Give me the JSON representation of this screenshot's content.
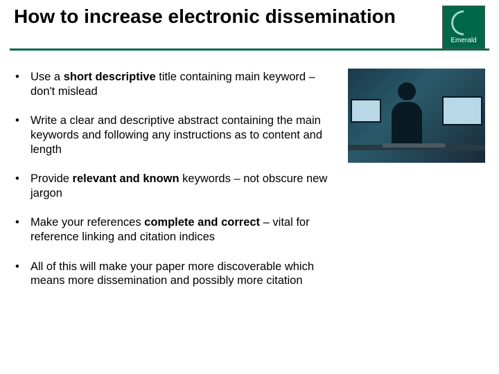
{
  "title": "How to increase electronic dissemination",
  "logo": {
    "name": "Emerald",
    "bg": "#006848"
  },
  "divider_color": "#006848",
  "bullets": [
    {
      "parts": [
        {
          "t": "Use a ",
          "b": false
        },
        {
          "t": "short descriptive ",
          "b": true
        },
        {
          "t": "title containing main keyword – don't mislead",
          "b": false
        }
      ]
    },
    {
      "parts": [
        {
          "t": "Write a clear and descriptive abstract containing the main keywords and following any instructions as to content and length",
          "b": false
        }
      ]
    },
    {
      "parts": [
        {
          "t": "Provide ",
          "b": false
        },
        {
          "t": "relevant and known ",
          "b": true
        },
        {
          "t": "keywords – not obscure new jargon",
          "b": false
        }
      ]
    },
    {
      "parts": [
        {
          "t": "Make your references ",
          "b": false
        },
        {
          "t": "complete and correct ",
          "b": true
        },
        {
          "t": "– vital for reference linking and citation indices",
          "b": false
        }
      ]
    },
    {
      "parts": [
        {
          "t": "All of this will make your paper more discoverable which means more dissemination and possibly more citation",
          "b": false
        }
      ]
    }
  ],
  "image": {
    "description": "person-at-computer",
    "width": 198,
    "height": 136
  },
  "typography": {
    "title_fontsize": 28,
    "body_fontsize": 16.5,
    "font_family": "Arial"
  },
  "colors": {
    "background": "#ffffff",
    "text": "#000000",
    "accent": "#006848"
  }
}
